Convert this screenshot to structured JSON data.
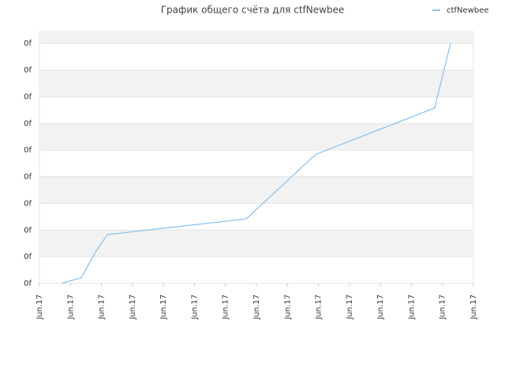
{
  "chart_data": {
    "type": "line",
    "title": "График общего счёта для ctfNewbee",
    "x": [
      0.71,
      1.35,
      1.6,
      1.81,
      2.19,
      6.67,
      8.91,
      12.75,
      13.26
    ],
    "series": [
      {
        "name": "ctfNewbee",
        "color": "#88c0ea",
        "values": [
          0,
          0.21,
          0.74,
          1.18,
          1.83,
          2.42,
          4.84,
          6.58,
          9.0
        ]
      }
    ],
    "xlim": [
      0,
      14
    ],
    "xticks": [
      {
        "value": 0,
        "label": "Jun.17"
      },
      {
        "value": 1,
        "label": "Jun.17"
      },
      {
        "value": 2,
        "label": "Jun.17"
      },
      {
        "value": 3,
        "label": "Jun.17"
      },
      {
        "value": 4,
        "label": "Jun.17"
      },
      {
        "value": 5,
        "label": "Jun.17"
      },
      {
        "value": 6,
        "label": "Jun.17"
      },
      {
        "value": 7,
        "label": "Jun.17"
      },
      {
        "value": 8,
        "label": "Jun.17"
      },
      {
        "value": 9,
        "label": "Jun.17"
      },
      {
        "value": 10,
        "label": "Jun.17"
      },
      {
        "value": 11,
        "label": "Jun.17"
      },
      {
        "value": 12,
        "label": "Jun.17"
      },
      {
        "value": 13,
        "label": "Jun.17"
      },
      {
        "value": 14,
        "label": "Jun.17"
      }
    ],
    "ylim": [
      0,
      9.45
    ],
    "yticks": [
      {
        "value": 0,
        "label": "0f"
      },
      {
        "value": 1,
        "label": "0f"
      },
      {
        "value": 2,
        "label": "0f"
      },
      {
        "value": 3,
        "label": "0f"
      },
      {
        "value": 4,
        "label": "0f"
      },
      {
        "value": 5,
        "label": "0f"
      },
      {
        "value": 6,
        "label": "0f"
      },
      {
        "value": 7,
        "label": "0f"
      },
      {
        "value": 8,
        "label": "0f"
      },
      {
        "value": 9,
        "label": "0f"
      }
    ],
    "grid": true,
    "bands": true,
    "legend": "top-right"
  }
}
